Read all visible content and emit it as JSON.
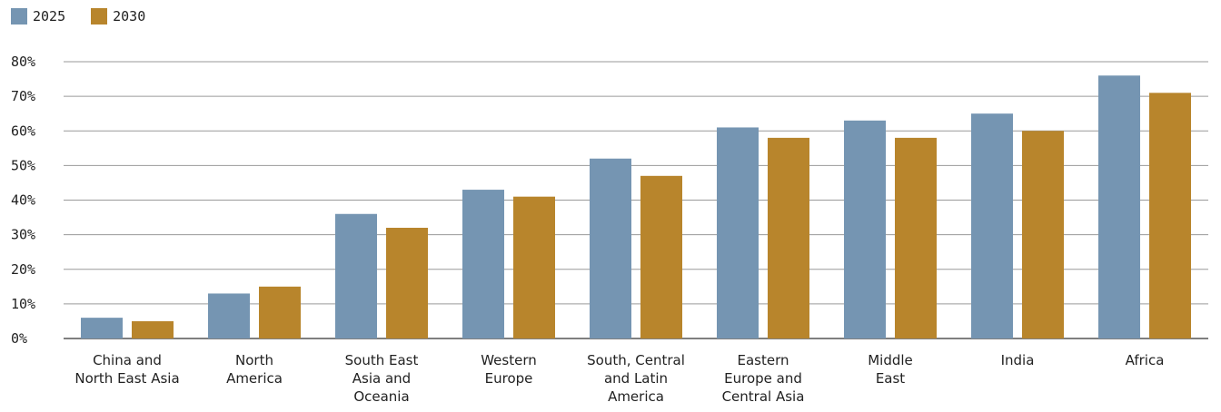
{
  "chart_data": {
    "type": "bar",
    "title": "",
    "xlabel": "",
    "ylabel": "",
    "ylim": [
      0,
      80
    ],
    "y_ticks": [
      "0%",
      "10%",
      "20%",
      "30%",
      "40%",
      "50%",
      "60%",
      "70%",
      "80%"
    ],
    "grid": true,
    "legend_position": "top-left",
    "categories": [
      [
        "China and",
        "North East Asia"
      ],
      [
        "North",
        "America"
      ],
      [
        "South East",
        "Asia and",
        "Oceania"
      ],
      [
        "Western",
        "Europe"
      ],
      [
        "South, Central",
        "and Latin",
        "America"
      ],
      [
        "Eastern",
        "Europe and",
        "Central Asia"
      ],
      [
        "Middle",
        "East"
      ],
      [
        "India"
      ],
      [
        "Africa"
      ]
    ],
    "series": [
      {
        "name": "2025",
        "color": "#7595B2",
        "values": [
          6,
          13,
          36,
          43,
          52,
          61,
          63,
          65,
          76
        ]
      },
      {
        "name": "2030",
        "color": "#B8852C",
        "values": [
          5,
          15,
          32,
          41,
          47,
          58,
          58,
          60,
          71
        ]
      }
    ]
  }
}
